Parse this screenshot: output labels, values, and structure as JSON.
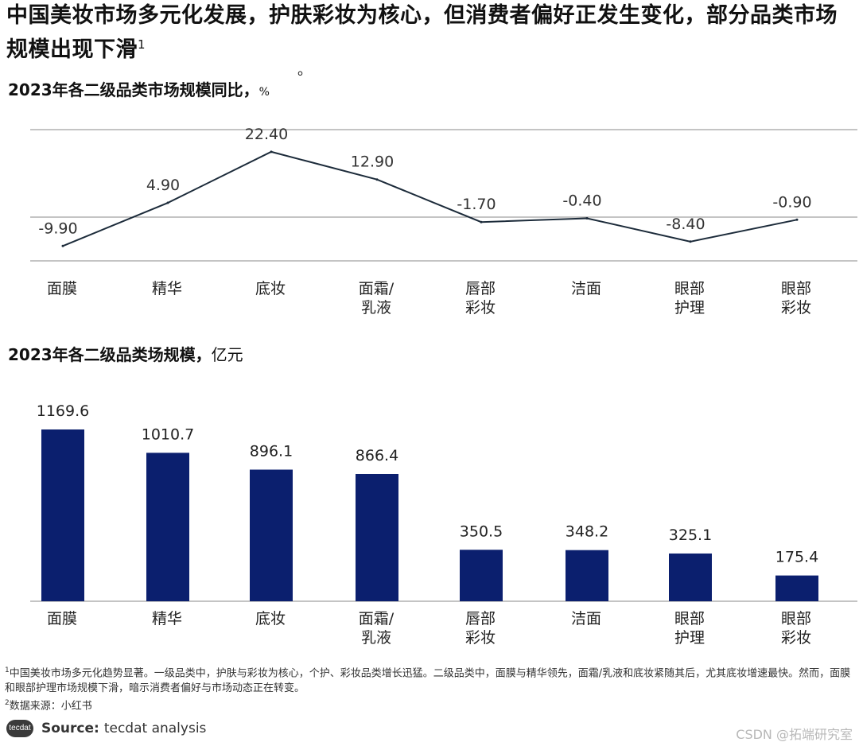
{
  "title": "中国美妆市场多元化发展，护肤彩妆为核心，但消费者偏好正发生变化，部分品类市场规模出现下滑",
  "title_sup": "1",
  "title_dot": "。",
  "subtitle1": "2023年各二级品类市场规模同比，",
  "subtitle1_unit": "%",
  "subtitle2": "2023年各二级品类场规模，",
  "subtitle2_unit": "亿元",
  "chart_data": [
    {
      "type": "line",
      "title": "2023年各二级品类市场规模同比，%",
      "categories": [
        [
          "面膜"
        ],
        [
          "精华"
        ],
        [
          "底妆"
        ],
        [
          "面霜/",
          "乳液"
        ],
        [
          "唇部",
          "彩妆"
        ],
        [
          "洁面"
        ],
        [
          "眼部",
          "护理"
        ],
        [
          "眼部",
          "彩妆"
        ]
      ],
      "values": [
        -9.9,
        4.9,
        22.4,
        12.9,
        -1.7,
        -0.4,
        -8.4,
        -0.9
      ],
      "value_labels": [
        "-9.90",
        "4.90",
        "22.40",
        "12.90",
        "-1.70",
        "-0.40",
        "-8.40",
        "-0.90"
      ],
      "ylim": [
        -15,
        30
      ],
      "gridlines": [
        30,
        0,
        -15
      ],
      "color": "#1c2b3a"
    },
    {
      "type": "bar",
      "title": "2023年各二级品类场规模，亿元",
      "categories": [
        [
          "面膜"
        ],
        [
          "精华"
        ],
        [
          "底妆"
        ],
        [
          "面霜/",
          "乳液"
        ],
        [
          "唇部",
          "彩妆"
        ],
        [
          "洁面"
        ],
        [
          "眼部",
          "护理"
        ],
        [
          "眼部",
          "彩妆"
        ]
      ],
      "values": [
        1169.6,
        1010.7,
        896.1,
        866.4,
        350.5,
        348.2,
        325.1,
        175.4
      ],
      "value_labels": [
        "1169.6",
        "1010.7",
        "896.1",
        "866.4",
        "350.5",
        "348.2",
        "325.1",
        "175.4"
      ],
      "ylim": [
        0,
        1169.6
      ],
      "color": "#0b1f6e"
    }
  ],
  "footnote1_sup": "1",
  "footnote1": "中国美妆市场多元化趋势显著。一级品类中，护肤与彩妆为核心，个护、彩妆品类增长迅猛。二级品类中，面膜与精华领先，面霜/乳液和底妆紧随其后，尤其底妆增速最快。然而，面膜和眼部护理市场规模下滑，暗示消费者偏好与市场动态正在转变。",
  "footnote2_sup": "2",
  "footnote2": "数据来源：小红书",
  "source_logo": "tecdat",
  "source_label": "Source:",
  "source_text": "tecdat analysis",
  "watermark": "CSDN @拓端研究室"
}
